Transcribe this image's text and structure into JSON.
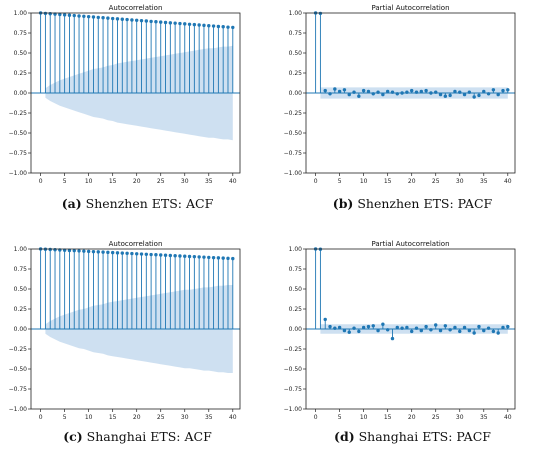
{
  "chart_data": [
    {
      "type": "acf",
      "title": "Autocorrelation",
      "caption_letter": "(a)",
      "caption_text": " Shenzhen ETS: ACF",
      "xlim": [
        -2,
        41.5
      ],
      "ylim": [
        -1.0,
        1.0
      ],
      "xticks": [
        0,
        5,
        10,
        15,
        20,
        25,
        30,
        35,
        40
      ],
      "xtick_labels": [
        "0",
        "5",
        "10",
        "15",
        "20",
        "25",
        "30",
        "35",
        "40"
      ],
      "yticks": [
        -1.0,
        -0.75,
        -0.5,
        -0.25,
        0.0,
        0.25,
        0.5,
        0.75,
        1.0
      ],
      "ytick_labels": [
        "−1.00",
        "−0.75",
        "−0.50",
        "−0.25",
        "0.00",
        "0.25",
        "0.50",
        "0.75",
        "1.00"
      ],
      "lags": [
        0,
        1,
        2,
        3,
        4,
        5,
        6,
        7,
        8,
        9,
        10,
        11,
        12,
        13,
        14,
        15,
        16,
        17,
        18,
        19,
        20,
        21,
        22,
        23,
        24,
        25,
        26,
        27,
        28,
        29,
        30,
        31,
        32,
        33,
        34,
        35,
        36,
        37,
        38,
        39,
        40
      ],
      "values": [
        1.0,
        0.995,
        0.991,
        0.986,
        0.982,
        0.977,
        0.972,
        0.968,
        0.963,
        0.959,
        0.954,
        0.95,
        0.945,
        0.941,
        0.936,
        0.931,
        0.927,
        0.922,
        0.918,
        0.913,
        0.909,
        0.904,
        0.9,
        0.895,
        0.891,
        0.886,
        0.882,
        0.877,
        0.873,
        0.868,
        0.864,
        0.859,
        0.855,
        0.85,
        0.846,
        0.841,
        0.837,
        0.832,
        0.828,
        0.823,
        0.82
      ],
      "confidence_band": {
        "lags": [
          1,
          2,
          3,
          4,
          5,
          6,
          7,
          8,
          9,
          10,
          11,
          12,
          13,
          14,
          15,
          16,
          17,
          18,
          19,
          20,
          21,
          22,
          23,
          24,
          25,
          26,
          27,
          28,
          29,
          30,
          31,
          32,
          33,
          34,
          35,
          36,
          37,
          38,
          39,
          40
        ],
        "upper": [
          0.06,
          0.1,
          0.13,
          0.16,
          0.18,
          0.2,
          0.22,
          0.24,
          0.26,
          0.28,
          0.3,
          0.31,
          0.32,
          0.34,
          0.35,
          0.37,
          0.38,
          0.39,
          0.4,
          0.41,
          0.42,
          0.43,
          0.44,
          0.45,
          0.46,
          0.47,
          0.48,
          0.49,
          0.5,
          0.51,
          0.52,
          0.53,
          0.54,
          0.55,
          0.56,
          0.56,
          0.57,
          0.58,
          0.58,
          0.59
        ],
        "lower": [
          -0.06,
          -0.1,
          -0.13,
          -0.16,
          -0.18,
          -0.2,
          -0.22,
          -0.24,
          -0.26,
          -0.28,
          -0.3,
          -0.31,
          -0.32,
          -0.34,
          -0.35,
          -0.37,
          -0.38,
          -0.39,
          -0.4,
          -0.41,
          -0.42,
          -0.43,
          -0.44,
          -0.45,
          -0.46,
          -0.47,
          -0.48,
          -0.49,
          -0.5,
          -0.51,
          -0.52,
          -0.53,
          -0.54,
          -0.55,
          -0.56,
          -0.56,
          -0.57,
          -0.58,
          -0.58,
          -0.59
        ]
      },
      "color": "#1f77b4",
      "band_color": "#c6dbef",
      "zero_line": true,
      "grid": false
    },
    {
      "type": "pacf",
      "title": "Partial Autocorrelation",
      "caption_letter": "(b)",
      "caption_text": " Shenzhen ETS: PACF",
      "xlim": [
        -2,
        41.5
      ],
      "ylim": [
        -1.0,
        1.0
      ],
      "xticks": [
        0,
        5,
        10,
        15,
        20,
        25,
        30,
        35,
        40
      ],
      "xtick_labels": [
        "0",
        "5",
        "10",
        "15",
        "20",
        "25",
        "30",
        "35",
        "40"
      ],
      "yticks": [
        -1.0,
        -0.75,
        -0.5,
        -0.25,
        0.0,
        0.25,
        0.5,
        0.75,
        1.0
      ],
      "ytick_labels": [
        "−1.00",
        "−0.75",
        "−0.50",
        "−0.25",
        "0.00",
        "0.25",
        "0.50",
        "0.75",
        "1.00"
      ],
      "lags": [
        0,
        1,
        2,
        3,
        4,
        5,
        6,
        7,
        8,
        9,
        10,
        11,
        12,
        13,
        14,
        15,
        16,
        17,
        18,
        19,
        20,
        21,
        22,
        23,
        24,
        25,
        26,
        27,
        28,
        29,
        30,
        31,
        32,
        33,
        34,
        35,
        36,
        37,
        38,
        39,
        40
      ],
      "values": [
        1.0,
        0.995,
        0.03,
        -0.01,
        0.05,
        0.02,
        0.04,
        -0.02,
        0.01,
        -0.04,
        0.03,
        0.02,
        -0.01,
        0.01,
        -0.02,
        0.02,
        0.01,
        -0.01,
        0.0,
        0.01,
        0.03,
        0.01,
        0.02,
        0.03,
        0.0,
        0.01,
        -0.02,
        -0.04,
        -0.03,
        0.02,
        0.01,
        -0.02,
        0.01,
        -0.05,
        -0.03,
        0.02,
        -0.01,
        0.04,
        -0.02,
        0.03,
        0.04
      ],
      "confidence_band": {
        "lags": [
          1,
          40
        ],
        "upper": [
          0.07,
          0.07
        ],
        "lower": [
          -0.07,
          -0.07
        ]
      },
      "color": "#1f77b4",
      "band_color": "#c6dbef",
      "zero_line": true,
      "grid": false
    },
    {
      "type": "acf",
      "title": "Autocorrelation",
      "caption_letter": "(c)",
      "caption_text": " Shanghai ETS: ACF",
      "xlim": [
        -2,
        41.5
      ],
      "ylim": [
        -1.0,
        1.0
      ],
      "xticks": [
        0,
        5,
        10,
        15,
        20,
        25,
        30,
        35,
        40
      ],
      "xtick_labels": [
        "0",
        "5",
        "10",
        "15",
        "20",
        "25",
        "30",
        "35",
        "40"
      ],
      "yticks": [
        -1.0,
        -0.75,
        -0.5,
        -0.25,
        0.0,
        0.25,
        0.5,
        0.75,
        1.0
      ],
      "ytick_labels": [
        "−1.00",
        "−0.75",
        "−0.50",
        "−0.25",
        "0.00",
        "0.25",
        "0.50",
        "0.75",
        "1.00"
      ],
      "lags": [
        0,
        1,
        2,
        3,
        4,
        5,
        6,
        7,
        8,
        9,
        10,
        11,
        12,
        13,
        14,
        15,
        16,
        17,
        18,
        19,
        20,
        21,
        22,
        23,
        24,
        25,
        26,
        27,
        28,
        29,
        30,
        31,
        32,
        33,
        34,
        35,
        36,
        37,
        38,
        39,
        40
      ],
      "values": [
        1.0,
        0.997,
        0.994,
        0.991,
        0.988,
        0.985,
        0.982,
        0.979,
        0.976,
        0.973,
        0.97,
        0.967,
        0.964,
        0.961,
        0.958,
        0.955,
        0.952,
        0.949,
        0.946,
        0.943,
        0.94,
        0.937,
        0.934,
        0.931,
        0.928,
        0.925,
        0.922,
        0.919,
        0.916,
        0.913,
        0.91,
        0.907,
        0.904,
        0.901,
        0.898,
        0.895,
        0.892,
        0.889,
        0.886,
        0.883,
        0.88
      ],
      "confidence_band": {
        "lags": [
          1,
          2,
          3,
          4,
          5,
          6,
          7,
          8,
          9,
          10,
          11,
          12,
          13,
          14,
          15,
          16,
          17,
          18,
          19,
          20,
          21,
          22,
          23,
          24,
          25,
          26,
          27,
          28,
          29,
          30,
          31,
          32,
          33,
          34,
          35,
          36,
          37,
          38,
          39,
          40
        ],
        "upper": [
          0.06,
          0.1,
          0.13,
          0.16,
          0.18,
          0.2,
          0.22,
          0.24,
          0.25,
          0.27,
          0.29,
          0.3,
          0.31,
          0.33,
          0.34,
          0.35,
          0.36,
          0.37,
          0.38,
          0.39,
          0.4,
          0.41,
          0.42,
          0.43,
          0.44,
          0.45,
          0.46,
          0.47,
          0.48,
          0.49,
          0.49,
          0.5,
          0.51,
          0.52,
          0.52,
          0.53,
          0.54,
          0.54,
          0.55,
          0.55
        ],
        "lower": [
          -0.06,
          -0.1,
          -0.13,
          -0.16,
          -0.18,
          -0.2,
          -0.22,
          -0.24,
          -0.25,
          -0.27,
          -0.29,
          -0.3,
          -0.31,
          -0.33,
          -0.34,
          -0.35,
          -0.36,
          -0.37,
          -0.38,
          -0.39,
          -0.4,
          -0.41,
          -0.42,
          -0.43,
          -0.44,
          -0.45,
          -0.46,
          -0.47,
          -0.48,
          -0.49,
          -0.49,
          -0.5,
          -0.51,
          -0.52,
          -0.52,
          -0.53,
          -0.54,
          -0.54,
          -0.55,
          -0.55
        ]
      },
      "color": "#1f77b4",
      "band_color": "#c6dbef",
      "zero_line": true,
      "grid": false
    },
    {
      "type": "pacf",
      "title": "Partial Autocorrelation",
      "caption_letter": "(d)",
      "caption_text": " Shanghai ETS: PACF",
      "xlim": [
        -2,
        41.5
      ],
      "ylim": [
        -1.0,
        1.0
      ],
      "xticks": [
        0,
        5,
        10,
        15,
        20,
        25,
        30,
        35,
        40
      ],
      "xtick_labels": [
        "0",
        "5",
        "10",
        "15",
        "20",
        "25",
        "30",
        "35",
        "40"
      ],
      "yticks": [
        -1.0,
        -0.75,
        -0.5,
        -0.25,
        0.0,
        0.25,
        0.5,
        0.75,
        1.0
      ],
      "ytick_labels": [
        "−1.00",
        "−0.75",
        "−0.50",
        "−0.25",
        "0.00",
        "0.25",
        "0.50",
        "0.75",
        "1.00"
      ],
      "lags": [
        0,
        1,
        2,
        3,
        4,
        5,
        6,
        7,
        8,
        9,
        10,
        11,
        12,
        13,
        14,
        15,
        16,
        17,
        18,
        19,
        20,
        21,
        22,
        23,
        24,
        25,
        26,
        27,
        28,
        29,
        30,
        31,
        32,
        33,
        34,
        35,
        36,
        37,
        38,
        39,
        40
      ],
      "values": [
        1.0,
        0.997,
        0.12,
        0.03,
        0.01,
        0.02,
        -0.02,
        -0.04,
        0.01,
        -0.03,
        0.02,
        0.03,
        0.04,
        -0.02,
        0.06,
        -0.01,
        -0.12,
        0.02,
        0.01,
        0.02,
        -0.03,
        0.01,
        -0.02,
        0.03,
        -0.01,
        0.05,
        -0.02,
        0.04,
        -0.01,
        0.02,
        -0.03,
        0.02,
        -0.02,
        -0.05,
        0.03,
        -0.02,
        0.01,
        -0.03,
        -0.05,
        0.02,
        0.03
      ],
      "confidence_band": {
        "lags": [
          1,
          40
        ],
        "upper": [
          0.06,
          0.06
        ],
        "lower": [
          -0.06,
          -0.06
        ]
      },
      "color": "#1f77b4",
      "band_color": "#c6dbef",
      "zero_line": true,
      "grid": false
    }
  ]
}
